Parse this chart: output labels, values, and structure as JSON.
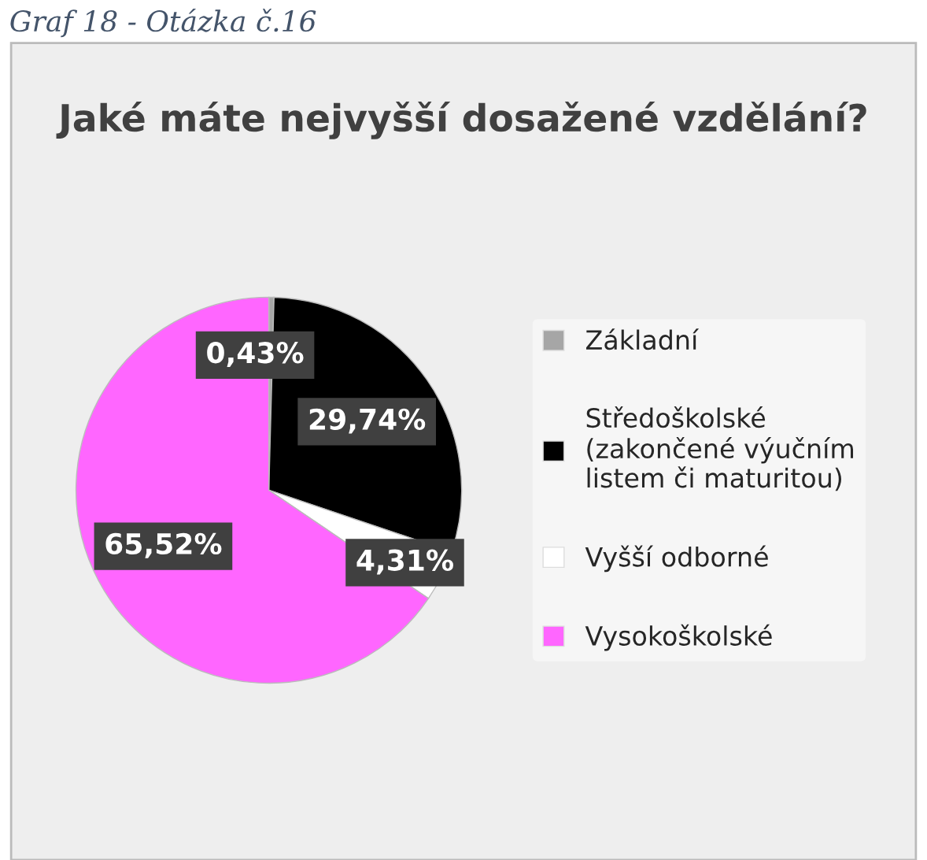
{
  "chart_data": {
    "type": "pie",
    "title": "Jaké máte nejvyšší dosažené vzdělání?",
    "annotations": [
      "Graf 18 - Otázka č.16"
    ],
    "categories": [
      "Základní",
      "Středoškolské\n(zakončené výučním\nlistem či maturitou)",
      "Vyšší odborné",
      "Vysokoškolské"
    ],
    "values": [
      0.43,
      29.74,
      4.31,
      65.52
    ],
    "value_labels": [
      "0,43%",
      "29,74%",
      "4,31%",
      "65,52%"
    ],
    "colors": [
      "#a6a6a6",
      "#000000",
      "#ffffff",
      "#ff66ff"
    ],
    "legend": "right"
  }
}
